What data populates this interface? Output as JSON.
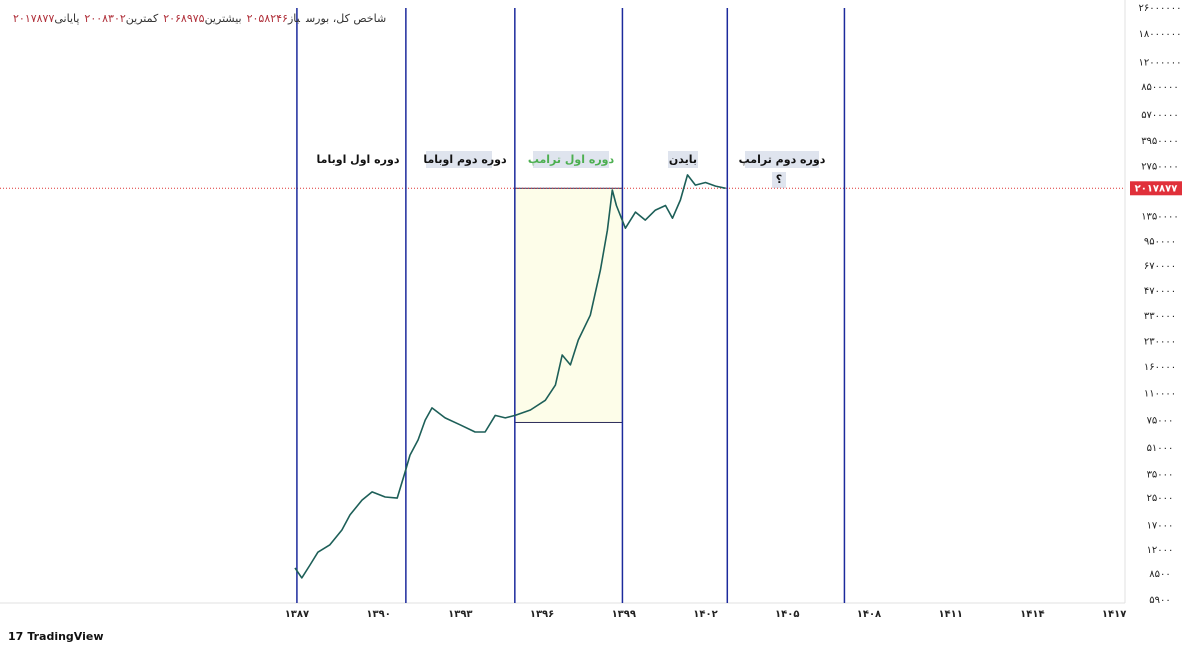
{
  "chart_data": {
    "type": "line",
    "title": "شاخص کل، بورس",
    "ohlc": [
      {
        "label": "باز",
        "value_label": "۲۰۵۸۲۴۶"
      },
      {
        "label": "بیشترین",
        "value_label": "۲۰۶۸۹۷۵"
      },
      {
        "label": "کمترین",
        "value_label": "۲۰۰۸۳۰۲"
      },
      {
        "label": "پایانی",
        "value_label": "۲۰۱۷۸۷۷"
      }
    ],
    "log_scale": true,
    "xlim": [
      1376.1,
      1417.4
    ],
    "ylim": [
      5650,
      29100000
    ],
    "xticks": [
      {
        "value": 1387,
        "label": "۱۳۸۷"
      },
      {
        "value": 1390,
        "label": "۱۳۹۰"
      },
      {
        "value": 1393,
        "label": "۱۳۹۳"
      },
      {
        "value": 1396,
        "label": "۱۳۹۶"
      },
      {
        "value": 1399,
        "label": "۱۳۹۹"
      },
      {
        "value": 1402,
        "label": "۱۴۰۲"
      },
      {
        "value": 1405,
        "label": "۱۴۰۵"
      },
      {
        "value": 1408,
        "label": "۱۴۰۸"
      },
      {
        "value": 1411,
        "label": "۱۴۱۱"
      },
      {
        "value": 1414,
        "label": "۱۴۱۴"
      },
      {
        "value": 1417,
        "label": "۱۴۱۷"
      }
    ],
    "yticks": [
      {
        "value": 26000000,
        "label": "۲۶۰۰۰۰۰۰"
      },
      {
        "value": 18000000,
        "label": "۱۸۰۰۰۰۰۰"
      },
      {
        "value": 12000000,
        "label": "۱۲۰۰۰۰۰۰"
      },
      {
        "value": 8500000,
        "label": "۸۵۰۰۰۰۰"
      },
      {
        "value": 5700000,
        "label": "۵۷۰۰۰۰۰"
      },
      {
        "value": 3950000,
        "label": "۳۹۵۰۰۰۰"
      },
      {
        "value": 2750000,
        "label": "۲۷۵۰۰۰۰"
      },
      {
        "value": 1350000,
        "label": "۱۳۵۰۰۰۰"
      },
      {
        "value": 950000,
        "label": "۹۵۰۰۰۰"
      },
      {
        "value": 670000,
        "label": "۶۷۰۰۰۰"
      },
      {
        "value": 470000,
        "label": "۴۷۰۰۰۰"
      },
      {
        "value": 330000,
        "label": "۳۳۰۰۰۰"
      },
      {
        "value": 230000,
        "label": "۲۳۰۰۰۰"
      },
      {
        "value": 160000,
        "label": "۱۶۰۰۰۰"
      },
      {
        "value": 110000,
        "label": "۱۱۰۰۰۰"
      },
      {
        "value": 75000,
        "label": "۷۵۰۰۰"
      },
      {
        "value": 51000,
        "label": "۵۱۰۰۰"
      },
      {
        "value": 35000,
        "label": "۳۵۰۰۰"
      },
      {
        "value": 25000,
        "label": "۲۵۰۰۰"
      },
      {
        "value": 17000,
        "label": "۱۷۰۰۰"
      },
      {
        "value": 12000,
        "label": "۱۲۰۰۰"
      },
      {
        "value": 8500,
        "label": "۸۵۰۰"
      },
      {
        "value": 5900,
        "label": "۵۹۰۰"
      }
    ],
    "last_price": 2017877,
    "last_price_label": "۲۰۱۷۸۷۷",
    "period_lines": [
      1387,
      1391,
      1395,
      1398.95,
      1402.8,
      1407.1
    ],
    "highlight": {
      "x": [
        1395,
        1398.95
      ],
      "y": [
        73000,
        2017877
      ]
    },
    "annotations": [
      "دوره اول اوباما",
      "دوره دوم اوباما",
      "دوره اول ترامپ",
      "بایدن",
      "دوره دوم ترامپ",
      "؟"
    ],
    "series": [
      {
        "color": "#1d5f58",
        "x": [
          1386.93,
          1387.18,
          1387.48,
          1387.77,
          1388.21,
          1388.65,
          1388.95,
          1389.39,
          1389.76,
          1390.24,
          1390.68,
          1390.97,
          1391.15,
          1391.45,
          1391.71,
          1391.96,
          1392.44,
          1392.99,
          1393.54,
          1393.91,
          1394.28,
          1394.65,
          1395.01,
          1395.57,
          1396.12,
          1396.49,
          1396.74,
          1397.04,
          1397.33,
          1397.77,
          1398.14,
          1398.4,
          1398.58,
          1398.73,
          1399.06,
          1399.43,
          1399.79,
          1400.16,
          1400.53,
          1400.79,
          1401.08,
          1401.34,
          1401.63,
          1402.0,
          1402.37,
          1402.74
        ],
        "values": [
          9290,
          8060,
          9680,
          11600,
          12900,
          15900,
          19700,
          24300,
          27300,
          25400,
          25000,
          36200,
          46000,
          57000,
          75500,
          89800,
          77900,
          70600,
          63800,
          63800,
          80700,
          77900,
          80700,
          87100,
          100000,
          124000,
          190000,
          165000,
          235000,
          334000,
          633000,
          1115000,
          1970000,
          1580000,
          1146000,
          1440000,
          1286000,
          1481000,
          1580000,
          1320000,
          1710000,
          2440000,
          2110000,
          2190000,
          2080000,
          2017877
        ]
      }
    ],
    "brand": "TradingView"
  }
}
